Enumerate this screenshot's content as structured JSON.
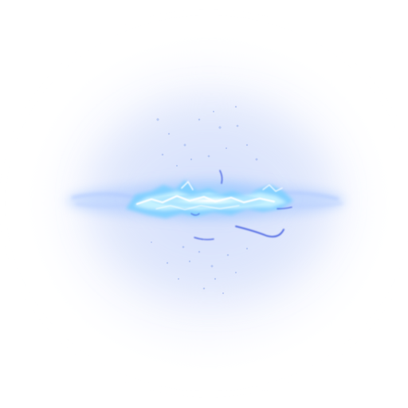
{
  "image": {
    "subject": "glowing-blue-energy-burst",
    "background_color": "#ffffff",
    "haze_color": "#dfe6fb",
    "glow_color": "#7fc7ff",
    "core_color": "#c8f2ff",
    "highlight_color": "#ffffff",
    "accent_color": "#3f5be0",
    "particle_color": "#9bb3ee"
  }
}
